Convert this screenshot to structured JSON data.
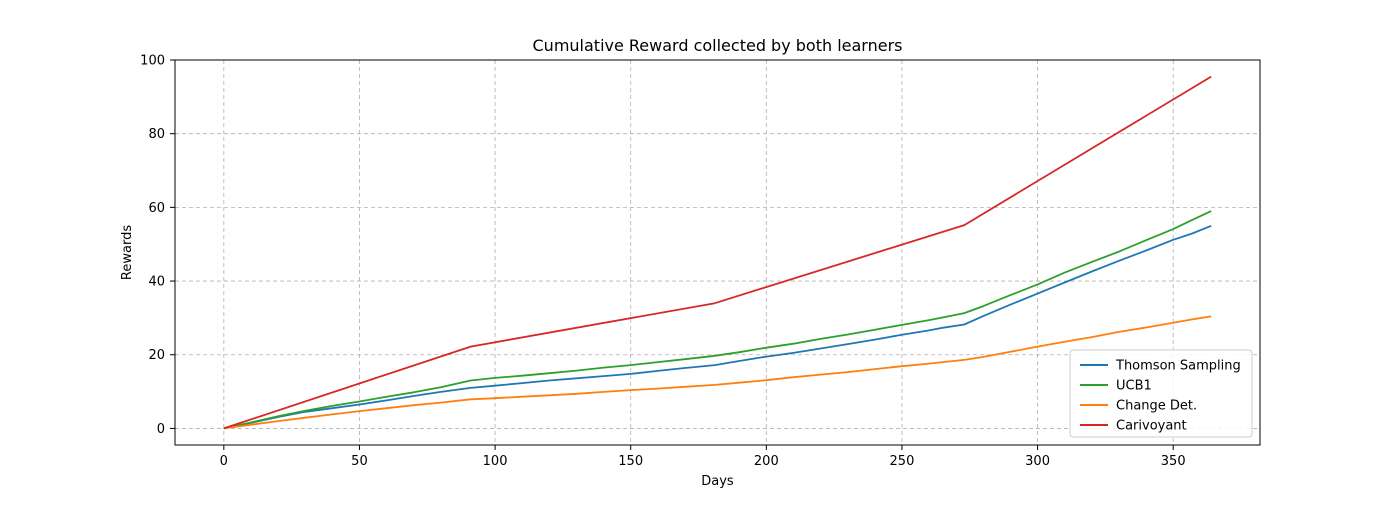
{
  "chart_data": {
    "type": "line",
    "title": "Cumulative Reward collected by both learners",
    "xlabel": "Days",
    "ylabel": "Rewards",
    "xlim": [
      -18,
      382
    ],
    "ylim": [
      -4.5,
      100
    ],
    "xticks": [
      0,
      50,
      100,
      150,
      200,
      250,
      300,
      350
    ],
    "yticks": [
      0,
      20,
      40,
      60,
      80,
      100
    ],
    "grid": true,
    "legend_position": "lower-right",
    "series": [
      {
        "name": "Thomson Sampling",
        "color": "#1f77b4",
        "x": [
          0,
          10,
          20,
          30,
          40,
          50,
          60,
          70,
          80,
          91,
          100,
          110,
          120,
          130,
          140,
          150,
          160,
          170,
          181,
          190,
          200,
          210,
          220,
          230,
          240,
          250,
          260,
          265,
          273,
          280,
          290,
          300,
          310,
          320,
          330,
          340,
          350,
          357,
          364
        ],
        "y": [
          0,
          1.5,
          3.1,
          4.5,
          5.5,
          6.5,
          7.6,
          8.8,
          9.9,
          11.0,
          11.6,
          12.3,
          13.0,
          13.6,
          14.2,
          14.8,
          15.6,
          16.4,
          17.2,
          18.3,
          19.5,
          20.5,
          21.7,
          22.9,
          24.1,
          25.4,
          26.6,
          27.3,
          28.2,
          30.5,
          33.6,
          36.6,
          39.6,
          42.6,
          45.5,
          48.3,
          51.2,
          52.9,
          55.0
        ]
      },
      {
        "name": "UCB1",
        "color": "#2ca02c",
        "x": [
          0,
          10,
          20,
          30,
          40,
          50,
          60,
          70,
          80,
          91,
          100,
          110,
          120,
          130,
          140,
          150,
          160,
          170,
          181,
          190,
          200,
          210,
          220,
          230,
          240,
          250,
          260,
          265,
          273,
          280,
          290,
          300,
          310,
          320,
          330,
          340,
          350,
          357,
          364
        ],
        "y": [
          0,
          1.6,
          3.3,
          4.8,
          6.1,
          7.3,
          8.6,
          9.8,
          11.2,
          13.0,
          13.7,
          14.3,
          15.0,
          15.7,
          16.5,
          17.2,
          18.0,
          18.8,
          19.7,
          20.7,
          21.9,
          23.0,
          24.3,
          25.5,
          26.8,
          28.1,
          29.4,
          30.1,
          31.3,
          33.2,
          36.2,
          39.1,
          42.3,
          45.2,
          48.0,
          51.1,
          54.1,
          56.6,
          59.0
        ]
      },
      {
        "name": "Change Det.",
        "color": "#ff7f0e",
        "x": [
          0,
          10,
          20,
          30,
          40,
          50,
          60,
          70,
          80,
          91,
          100,
          110,
          120,
          130,
          140,
          150,
          160,
          170,
          181,
          190,
          200,
          210,
          220,
          230,
          240,
          250,
          260,
          265,
          273,
          280,
          290,
          300,
          310,
          320,
          330,
          340,
          350,
          357,
          364
        ],
        "y": [
          0,
          1.0,
          2.0,
          2.9,
          3.8,
          4.7,
          5.5,
          6.3,
          7.0,
          7.9,
          8.2,
          8.6,
          9.0,
          9.4,
          9.9,
          10.4,
          10.8,
          11.3,
          11.8,
          12.4,
          13.1,
          13.9,
          14.6,
          15.3,
          16.1,
          16.9,
          17.6,
          18.0,
          18.6,
          19.4,
          20.8,
          22.2,
          23.5,
          24.8,
          26.2,
          27.4,
          28.7,
          29.6,
          30.4
        ]
      },
      {
        "name": "Carivoyant",
        "color": "#d62728",
        "x": [
          0,
          91,
          181,
          273,
          364
        ],
        "y": [
          0,
          22.2,
          34.0,
          55.2,
          95.5
        ]
      }
    ]
  }
}
